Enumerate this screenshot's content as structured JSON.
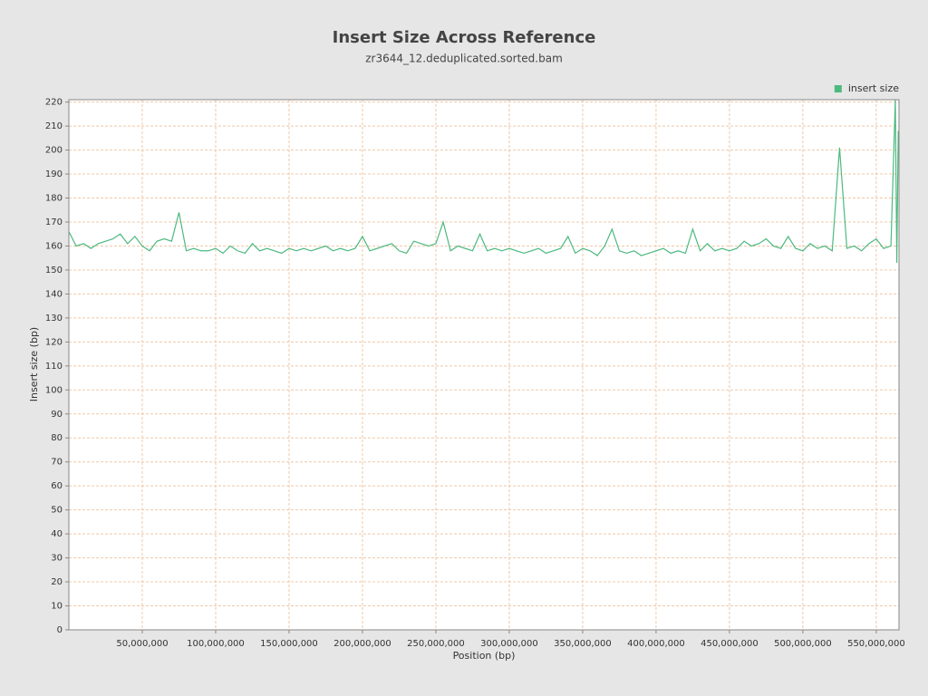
{
  "chart_data": {
    "type": "line",
    "title": "Insert Size Across Reference",
    "subtitle": "zr3644_12.deduplicated.sorted.bam",
    "x_label": "Position (bp)",
    "y_label": "Insert size (bp)",
    "legend": "top-right",
    "grid": true,
    "xlim": [
      0,
      565500000
    ],
    "ylim": [
      0,
      221
    ],
    "xticks": [
      {
        "value": 50000000,
        "label": "50,000,000"
      },
      {
        "value": 100000000,
        "label": "100,000,000"
      },
      {
        "value": 150000000,
        "label": "150,000,000"
      },
      {
        "value": 200000000,
        "label": "200,000,000"
      },
      {
        "value": 250000000,
        "label": "250,000,000"
      },
      {
        "value": 300000000,
        "label": "300,000,000"
      },
      {
        "value": 350000000,
        "label": "350,000,000"
      },
      {
        "value": 400000000,
        "label": "400,000,000"
      },
      {
        "value": 450000000,
        "label": "450,000,000"
      },
      {
        "value": 500000000,
        "label": "500,000,000"
      },
      {
        "value": 550000000,
        "label": "550,000,000"
      }
    ],
    "yticks": [
      0,
      10,
      20,
      30,
      40,
      50,
      60,
      70,
      80,
      90,
      100,
      110,
      120,
      130,
      140,
      150,
      160,
      170,
      180,
      190,
      200,
      210,
      220
    ],
    "x": [
      0,
      5000000,
      10000000,
      15000000,
      20000000,
      25000000,
      30000000,
      35000000,
      40000000,
      45000000,
      50000000,
      55000000,
      60000000,
      65000000,
      70000000,
      75000000,
      80000000,
      85000000,
      90000000,
      95000000,
      100000000,
      105000000,
      110000000,
      115000000,
      120000000,
      125000000,
      130000000,
      135000000,
      140000000,
      145000000,
      150000000,
      155000000,
      160000000,
      165000000,
      170000000,
      175000000,
      180000000,
      185000000,
      190000000,
      195000000,
      200000000,
      205000000,
      210000000,
      215000000,
      220000000,
      225000000,
      230000000,
      235000000,
      240000000,
      245000000,
      250000000,
      255000000,
      260000000,
      265000000,
      270000000,
      275000000,
      280000000,
      285000000,
      290000000,
      295000000,
      300000000,
      305000000,
      310000000,
      315000000,
      320000000,
      325000000,
      330000000,
      335000000,
      340000000,
      345000000,
      350000000,
      355000000,
      360000000,
      365000000,
      370000000,
      375000000,
      380000000,
      385000000,
      390000000,
      395000000,
      400000000,
      405000000,
      410000000,
      415000000,
      420000000,
      425000000,
      430000000,
      435000000,
      440000000,
      445000000,
      450000000,
      455000000,
      460000000,
      465000000,
      470000000,
      475000000,
      480000000,
      485000000,
      490000000,
      495000000,
      500000000,
      505000000,
      510000000,
      515000000,
      520000000,
      525000000,
      530000000,
      535000000,
      540000000,
      545000000,
      550000000,
      555000000,
      560000000,
      563000000,
      564000000,
      565000000
    ],
    "series": [
      {
        "name": "insert size",
        "color": "#4cb97f",
        "values": [
          166,
          160,
          161,
          159,
          161,
          162,
          163,
          165,
          161,
          164,
          160,
          158,
          162,
          163,
          162,
          174,
          158,
          159,
          158,
          158,
          159,
          157,
          160,
          158,
          157,
          161,
          158,
          159,
          158,
          157,
          159,
          158,
          159,
          158,
          159,
          160,
          158,
          159,
          158,
          159,
          164,
          158,
          159,
          160,
          161,
          158,
          157,
          162,
          161,
          160,
          161,
          170,
          158,
          160,
          159,
          158,
          165,
          158,
          159,
          158,
          159,
          158,
          157,
          158,
          159,
          157,
          158,
          159,
          164,
          157,
          159,
          158,
          156,
          160,
          167,
          158,
          157,
          158,
          156,
          157,
          158,
          159,
          157,
          158,
          157,
          167,
          158,
          161,
          158,
          159,
          158,
          159,
          162,
          160,
          161,
          163,
          160,
          159,
          164,
          159,
          158,
          161,
          159,
          160,
          158,
          201,
          159,
          160,
          158,
          161,
          163,
          159,
          160,
          221,
          153,
          208
        ]
      }
    ]
  }
}
